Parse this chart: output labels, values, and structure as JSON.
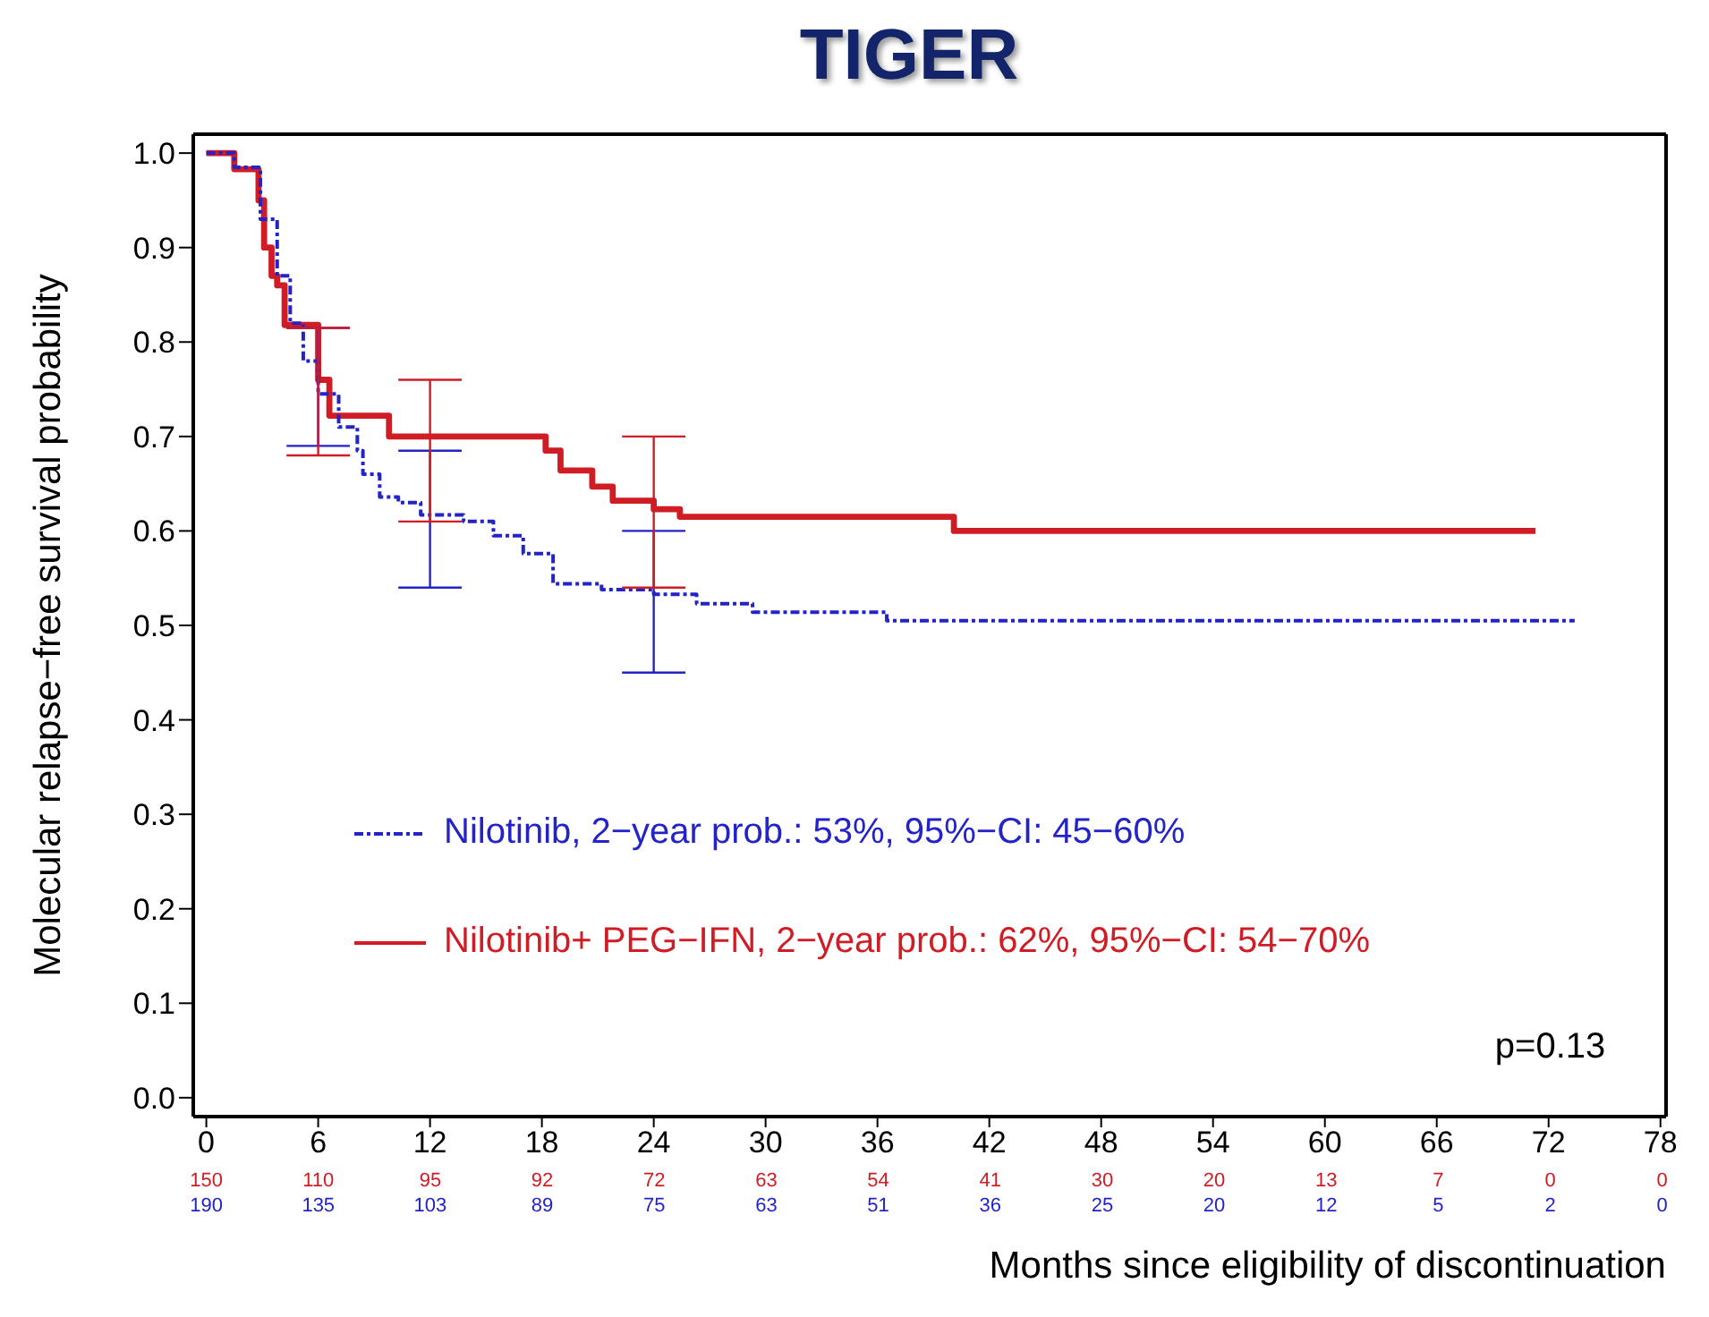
{
  "chart_data": {
    "type": "step",
    "title": "TIGER",
    "xlabel": "Months since eligibility of discontinuation",
    "ylabel": "Molecular relapse−free survival probability",
    "xlim": [
      -0.7,
      78.3
    ],
    "xticks": [
      0,
      6,
      12,
      18,
      24,
      30,
      36,
      42,
      48,
      54,
      60,
      66,
      72,
      78
    ],
    "ylim": [
      -0.02,
      1.02
    ],
    "yticks": [
      {
        "value": 0,
        "label": "0.0"
      },
      {
        "value": 0.1,
        "label": "0.1"
      },
      {
        "value": 0.2,
        "label": "0.2"
      },
      {
        "value": 0.3,
        "label": "0.3"
      },
      {
        "value": 0.4,
        "label": "0.4"
      },
      {
        "value": 0.5,
        "label": "0.5"
      },
      {
        "value": 0.6,
        "label": "0.6"
      },
      {
        "value": 0.7,
        "label": "0.7"
      },
      {
        "value": 0.8,
        "label": "0.8"
      },
      {
        "value": 0.9,
        "label": "0.9"
      },
      {
        "value": 1,
        "label": "1.0"
      }
    ],
    "legend": "bottom left",
    "grid": false,
    "series": [
      {
        "name": "Nilotinib, 2−year prob.: 53%, 95%−CI: 45−60%",
        "color": "#2323c8",
        "line_style": "dashed",
        "x": [
          0,
          1.5,
          2.9,
          3.8,
          4.5,
          5.2,
          6,
          7.1,
          8.1,
          8.4,
          9.3,
          10.3,
          11.5,
          12,
          13.8,
          15.4,
          17,
          18.6,
          21.2,
          24,
          26.3,
          29.3,
          36.5,
          73.4
        ],
        "values": [
          1,
          0.985,
          0.93,
          0.87,
          0.82,
          0.78,
          0.745,
          0.71,
          0.685,
          0.66,
          0.636,
          0.63,
          0.617,
          0.617,
          0.61,
          0.595,
          0.576,
          0.544,
          0.538,
          0.533,
          0.523,
          0.514,
          0.505,
          0.505
        ],
        "errors": [
          null,
          null,
          null,
          null,
          null,
          null,
          [
            0.69,
            0.815
          ],
          null,
          null,
          null,
          null,
          null,
          null,
          [
            0.54,
            0.685
          ],
          null,
          null,
          null,
          null,
          null,
          [
            0.45,
            0.6
          ],
          null,
          null,
          null,
          null
        ]
      },
      {
        "name": "Nilotinib+ PEG−IFN, 2−year prob.: 62%, 95%−CI: 54−70%",
        "color": "#d01c24",
        "line_style": "solid",
        "x": [
          0,
          1.5,
          2.8,
          3.1,
          3.5,
          3.8,
          4.2,
          6,
          6.6,
          9.8,
          12,
          18.2,
          19,
          20.7,
          21.8,
          24,
          25.4,
          40.1,
          71.3
        ],
        "values": [
          1,
          0.983,
          0.95,
          0.9,
          0.87,
          0.86,
          0.818,
          0.76,
          0.722,
          0.7,
          0.7,
          0.685,
          0.664,
          0.647,
          0.632,
          0.623,
          0.615,
          0.6,
          0.6
        ],
        "errors": [
          null,
          null,
          null,
          null,
          null,
          null,
          null,
          [
            0.68,
            0.815
          ],
          null,
          null,
          [
            0.61,
            0.76
          ],
          null,
          null,
          null,
          null,
          [
            0.54,
            0.7
          ],
          null,
          null,
          null
        ]
      }
    ],
    "annotations": [
      "p=0.13",
      "150",
      "110",
      "95",
      "92",
      "72",
      "63",
      "54",
      "41",
      "30",
      "20",
      "13",
      "7",
      "0",
      "0",
      "190",
      "135",
      "103",
      "89",
      "75",
      "63",
      "51",
      "36",
      "25",
      "20",
      "12",
      "5",
      "2",
      "0"
    ]
  }
}
